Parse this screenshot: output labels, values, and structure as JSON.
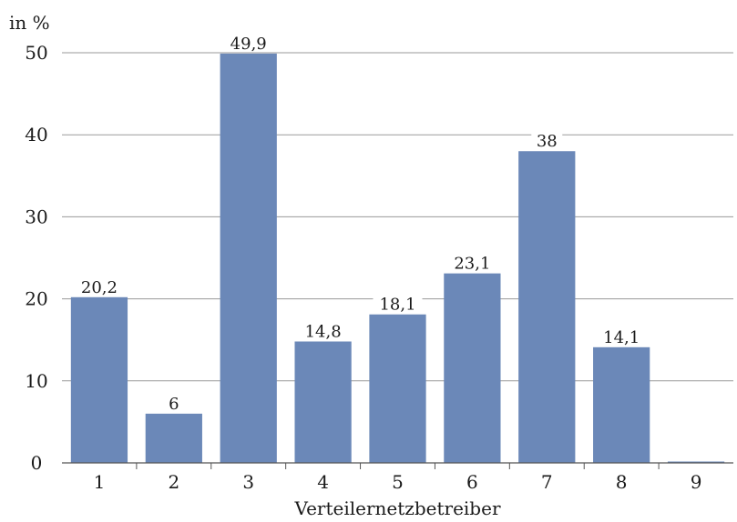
{
  "chart_data": {
    "type": "bar",
    "unit_label": "in %",
    "xlabel": "Verteilernetzbetreiber",
    "ylabel": "",
    "categories": [
      "1",
      "2",
      "3",
      "4",
      "5",
      "6",
      "7",
      "8",
      "9"
    ],
    "values": [
      20.2,
      6,
      49.9,
      14.8,
      18.1,
      23.1,
      38,
      14.1,
      0
    ],
    "value_labels": [
      "20,2",
      "6",
      "49,9",
      "14,8",
      "18,1",
      "23,1",
      "38",
      "14,1",
      ""
    ],
    "ylim": [
      0,
      50
    ],
    "yticks": [
      0,
      10,
      20,
      30,
      40,
      50
    ],
    "grid": true,
    "bar_color": "#6b88b8",
    "grid_color": "#9a9a9a"
  }
}
